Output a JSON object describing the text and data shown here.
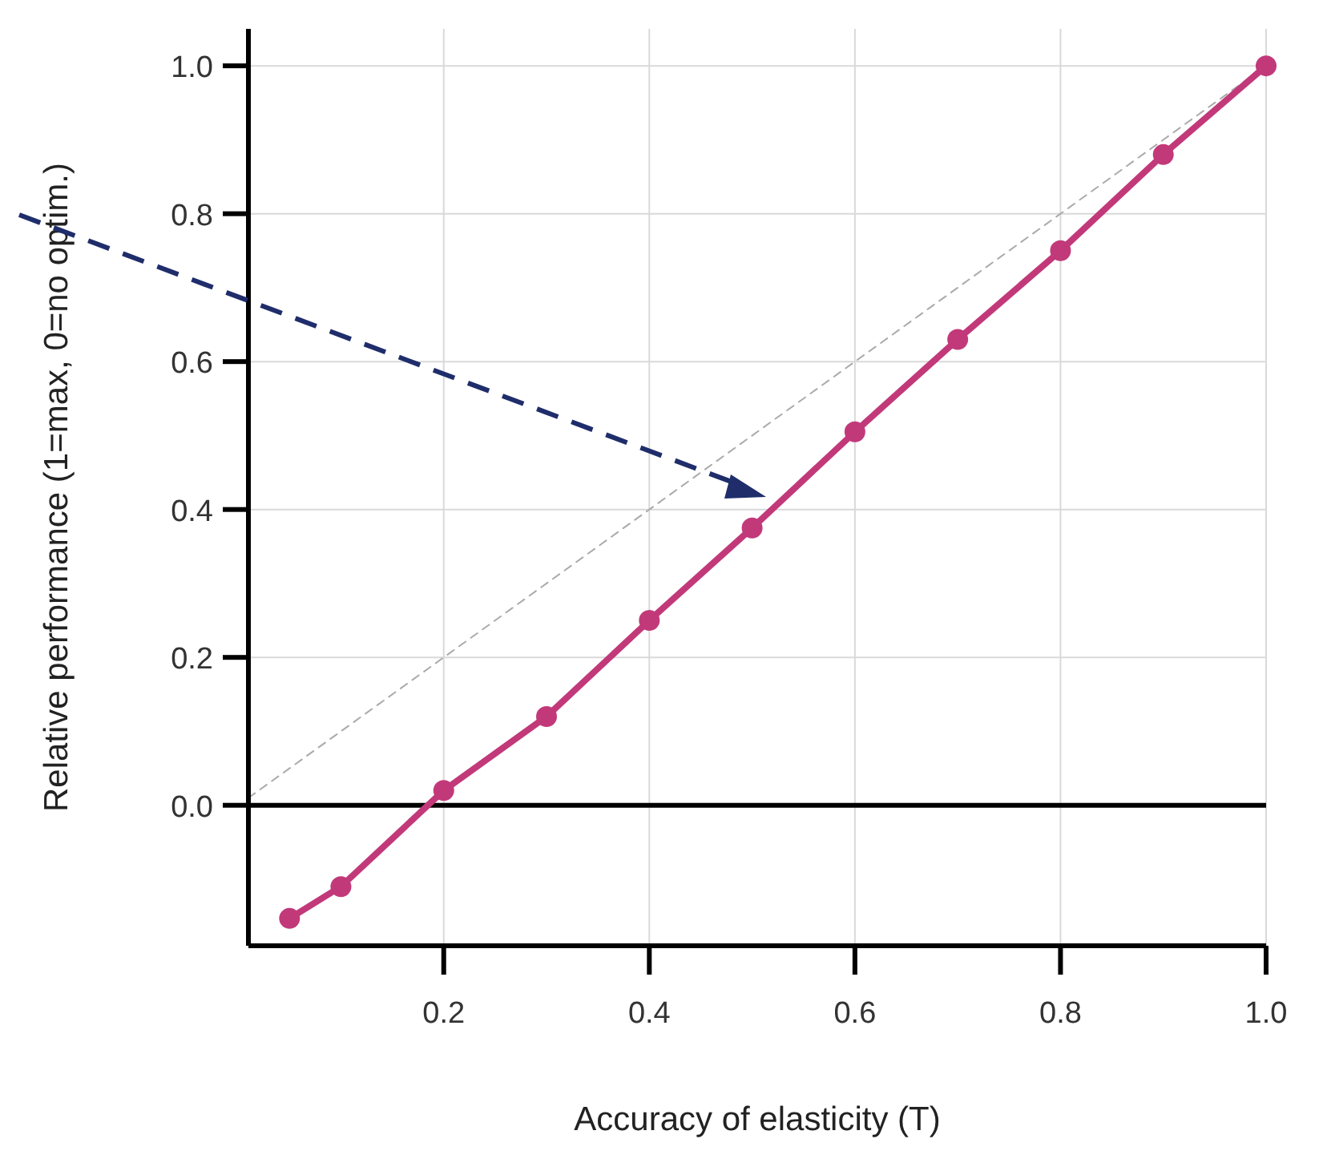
{
  "chart_data": {
    "type": "line",
    "xlabel": "Accuracy of elasticity (T)",
    "ylabel": "Relative performance (1=max, 0=no optim.)",
    "xlim": [
      0.01,
      1.0
    ],
    "ylim": [
      -0.19,
      1.05
    ],
    "xticks": [
      0.2,
      0.4,
      0.6,
      0.8,
      {
        "value": 1,
        "label": "1.0"
      }
    ],
    "yticks": [
      {
        "value": 0,
        "label": "0.0"
      },
      0.2,
      0.4,
      0.6,
      0.8,
      {
        "value": 1,
        "label": "1.0"
      }
    ],
    "grid": true,
    "series": [
      {
        "color": "#c2397a",
        "marker": "circle",
        "line_style": "solid",
        "x": [
          0.05,
          0.1,
          0.2,
          0.3,
          0.4,
          0.5,
          0.6,
          0.7,
          0.8,
          0.9,
          1.0
        ],
        "values": [
          -0.153,
          -0.11,
          0.02,
          0.12,
          0.25,
          0.375,
          0.505,
          0.63,
          0.75,
          0.88,
          1.0
        ]
      },
      {
        "color": "#aaaaaa",
        "marker": "none",
        "line_style": "dashed",
        "x": [
          0.01,
          1.0
        ],
        "values": [
          0.01,
          1.0
        ]
      }
    ],
    "ref_lines": [
      {
        "axis": "y",
        "value": 0,
        "color": "#000000",
        "line_style": "solid"
      }
    ]
  }
}
